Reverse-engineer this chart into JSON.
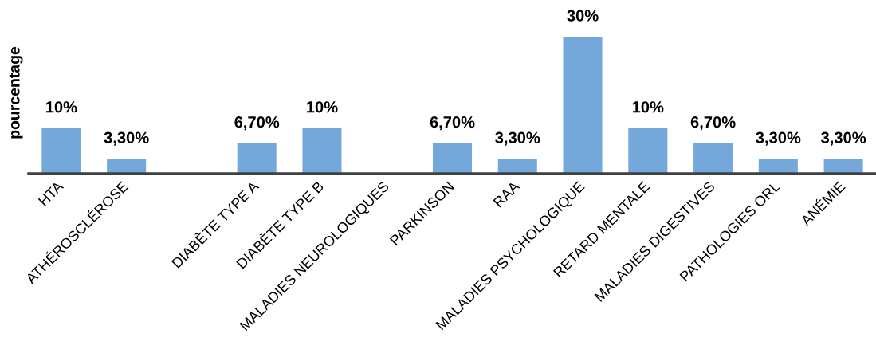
{
  "chart_data": {
    "type": "bar",
    "ylabel": "pourcentage",
    "categories": [
      "HTA",
      "ATHÉROSCLÉROSE",
      null,
      "DIABÈTE TYPE A",
      "DIABÈTE TYPE B",
      "MALADIES NEUROLOGIQUES",
      "PARKINSON",
      "RAA",
      "MALADIES PSYCHOLOGIQUE",
      "RETARD MENTALE",
      "MALADIES DIGESTIVES",
      "PATHOLOGIES ORL",
      "ANÉMIE"
    ],
    "values": [
      10,
      3.3,
      null,
      6.7,
      10,
      null,
      6.7,
      3.3,
      30,
      10,
      6.7,
      3.3,
      3.3
    ],
    "value_labels": [
      "10%",
      "3,30%",
      null,
      "6,70%",
      "10%",
      null,
      "6,70%",
      "3,30%",
      "30%",
      "10%",
      "6,70%",
      "3,30%",
      "3,30%"
    ],
    "color": "#75a8da",
    "tick_labels": "x"
  }
}
